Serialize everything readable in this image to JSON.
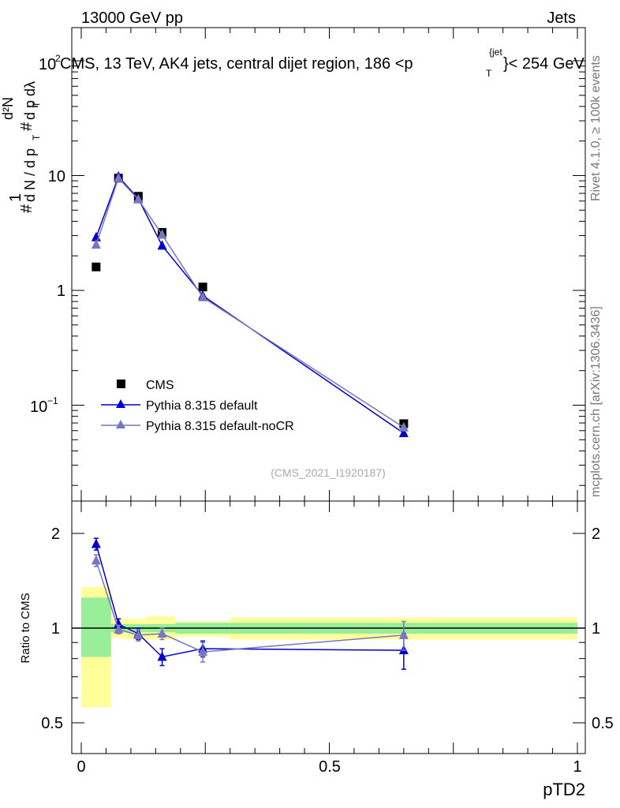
{
  "header": {
    "left": "13000 GeV pp",
    "right": "Jets"
  },
  "chart_data": {
    "type": "line",
    "title": "CMS, 13 TeV, AK4 jets, central dijet region, 186 <p",
    "title_sup": "{jet",
    "title_sub": "T",
    "title_tail": "}< 254 GeV",
    "ylabel_main": "# 1 / dN / d p_T # d^2N / d p_T dλ",
    "ylabel_ratio": "Ratio to CMS",
    "xlabel": "pTD2",
    "x_ticks": [
      "0",
      "0.5",
      "1"
    ],
    "y_ticks_main": [
      "10^2",
      "10",
      "1",
      "10^-1"
    ],
    "y_ticks_ratio": [
      "2",
      "1",
      "0.5"
    ],
    "xlim": [
      0,
      1
    ],
    "ylim_main": [
      0.015,
      200
    ],
    "ylim_ratio": [
      0.38,
      2.3
    ],
    "watermark": "(CMS_2021_I1920187)",
    "side_text_top": "Rivet 4.1.0, ≥ 100k events",
    "side_text_bottom": "mcplots.cern.ch [arXiv:1306.3436]",
    "legend_position": "lower-left",
    "series": [
      {
        "name": "CMS",
        "color": "#000000",
        "marker": "square",
        "x": [
          0.03,
          0.075,
          0.115,
          0.163,
          0.245,
          0.65
        ],
        "y": [
          1.6,
          9.5,
          6.6,
          3.2,
          1.07,
          0.069
        ]
      },
      {
        "name": "Pythia 8.315 default",
        "color": "#0000cc",
        "marker": "triangle",
        "x": [
          0.03,
          0.075,
          0.115,
          0.163,
          0.245,
          0.65
        ],
        "y": [
          2.9,
          9.8,
          6.3,
          2.45,
          0.9,
          0.057
        ],
        "ratio": [
          1.85,
          1.03,
          0.96,
          0.81,
          0.86,
          0.85
        ],
        "ratio_err": [
          0.08,
          0.04,
          0.04,
          0.05,
          0.05,
          0.11
        ]
      },
      {
        "name": "Pythia 8.315 default-noCR",
        "color": "#7777bb",
        "marker": "triangle",
        "x": [
          0.03,
          0.075,
          0.115,
          0.163,
          0.245,
          0.65
        ],
        "y": [
          2.5,
          9.5,
          6.2,
          3.05,
          0.87,
          0.064
        ],
        "ratio": [
          1.64,
          0.99,
          0.95,
          0.96,
          0.84,
          0.95
        ],
        "ratio_err": [
          0.07,
          0.03,
          0.04,
          0.04,
          0.06,
          0.1
        ]
      }
    ],
    "uncertainty_bands": {
      "bins": [
        [
          0.0,
          0.06
        ],
        [
          0.06,
          0.09
        ],
        [
          0.09,
          0.13
        ],
        [
          0.13,
          0.19
        ],
        [
          0.19,
          0.3
        ],
        [
          0.3,
          1.0
        ]
      ],
      "green_lo": [
        0.81,
        0.97,
        0.97,
        0.97,
        0.96,
        0.96
      ],
      "green_hi": [
        1.25,
        1.03,
        1.03,
        1.03,
        1.04,
        1.04
      ],
      "yellow_lo": [
        0.56,
        0.93,
        0.92,
        0.92,
        0.94,
        0.92
      ],
      "yellow_hi": [
        1.35,
        1.07,
        1.07,
        1.09,
        1.05,
        1.08
      ],
      "green_color": "#99ee99",
      "yellow_color": "#ffff99"
    }
  }
}
